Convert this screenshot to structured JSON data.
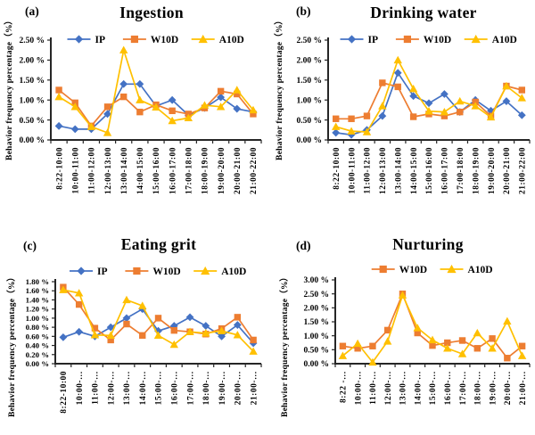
{
  "axis_color": "#262626",
  "text_color": "#000000",
  "series_colors": {
    "IP": "#4472C4",
    "W10D": "#ED7D31",
    "A10D": "#FFC000"
  },
  "chart_data": [
    {
      "type": "line",
      "panel_label": "(a)",
      "title": "Ingestion",
      "ylabel": "Behavior frequency percentage（%）",
      "xlabel": "",
      "ylim": [
        0,
        2.5
      ],
      "grid": false,
      "legend_position": "top",
      "ytick_labels": [
        "0.00 %",
        "0.50 %",
        "1.00 %",
        "1.50 %",
        "2.00 %",
        "2.50 %"
      ],
      "categories": [
        "8:22-10:00",
        "10:00-11:00",
        "11:00-12:00",
        "12:00-13:00",
        "13:00-14:00",
        "14:00-15:00",
        "15:00-16:00",
        "16:00-17:00",
        "17:00-18:00",
        "18:00-19:00",
        "19:00-20:00",
        "20:00-21:00",
        "21:00-22:00"
      ],
      "series": [
        {
          "name": "IP",
          "color": "#4472C4",
          "marker": "diamond",
          "values": [
            0.35,
            0.27,
            0.27,
            0.65,
            1.4,
            1.4,
            0.85,
            1.0,
            0.62,
            0.8,
            1.07,
            0.78,
            0.7
          ]
        },
        {
          "name": "W10D",
          "color": "#ED7D31",
          "marker": "square",
          "values": [
            1.25,
            0.93,
            0.35,
            0.83,
            1.08,
            0.7,
            0.88,
            0.73,
            0.65,
            0.8,
            1.22,
            1.15,
            0.65
          ]
        },
        {
          "name": "A10D",
          "color": "#FFC000",
          "marker": "triangle",
          "values": [
            1.08,
            0.83,
            0.33,
            0.18,
            2.25,
            1.0,
            0.82,
            0.48,
            0.55,
            0.87,
            0.83,
            1.25,
            0.75
          ]
        }
      ]
    },
    {
      "type": "line",
      "panel_label": "(b)",
      "title": "Drinking water",
      "ylabel": "Behavior frequency percentage（%）",
      "xlabel": "",
      "ylim": [
        0,
        2.5
      ],
      "grid": false,
      "legend_position": "top",
      "ytick_labels": [
        "0.00 %",
        "0.50 %",
        "1.00 %",
        "1.50 %",
        "2.00 %",
        "2.50 %"
      ],
      "categories": [
        "8:22-10:00",
        "10:00-11:00",
        "11:00-12:00",
        "12:00-13:00",
        "13:00-14:00",
        "14:00-15:00",
        "15:00-16:00",
        "16:00-17:00",
        "17:00-18:00",
        "18:00-19:00",
        "19:00-20:00",
        "20:00-21:00",
        "21:00-22:00"
      ],
      "series": [
        {
          "name": "IP",
          "color": "#4472C4",
          "marker": "diamond",
          "values": [
            0.18,
            0.13,
            0.25,
            0.6,
            1.68,
            1.1,
            0.92,
            1.15,
            0.7,
            1.0,
            0.73,
            0.97,
            0.62
          ]
        },
        {
          "name": "W10D",
          "color": "#ED7D31",
          "marker": "square",
          "values": [
            0.53,
            0.53,
            0.6,
            1.43,
            1.33,
            0.58,
            0.65,
            0.6,
            0.7,
            0.95,
            0.6,
            1.35,
            1.25
          ]
        },
        {
          "name": "A10D",
          "color": "#FFC000",
          "marker": "triangle",
          "values": [
            0.33,
            0.22,
            0.2,
            0.85,
            2.0,
            1.28,
            0.72,
            0.7,
            0.97,
            0.85,
            0.57,
            1.35,
            1.05
          ]
        }
      ]
    },
    {
      "type": "line",
      "panel_label": "(c)",
      "title": "Eating grit",
      "ylabel": "Behavior frequency percentage（%）",
      "xlabel": "",
      "ylim": [
        0,
        1.8
      ],
      "grid": false,
      "legend_position": "top",
      "ytick_labels": [
        "0.00 %",
        "0.20 %",
        "0.40 %",
        "0.60 %",
        "0.80 %",
        "1.00 %",
        "1.20 %",
        "1.40 %",
        "1.60 %",
        "1.80 %"
      ],
      "categories": [
        "8:22-10:00",
        "10:00-…",
        "11:00-…",
        "12:00-…",
        "13:00-…",
        "14:00-…",
        "15:00-…",
        "16:00-…",
        "17:00-…",
        "18:00-…",
        "19:00-…",
        "20:00-…",
        "21:00-…"
      ],
      "series": [
        {
          "name": "IP",
          "color": "#4472C4",
          "marker": "diamond",
          "values": [
            0.58,
            0.7,
            0.6,
            0.8,
            1.0,
            1.2,
            0.72,
            0.83,
            1.02,
            0.83,
            0.6,
            0.85,
            0.45
          ]
        },
        {
          "name": "W10D",
          "color": "#ED7D31",
          "marker": "square",
          "values": [
            1.68,
            1.3,
            0.78,
            0.52,
            0.87,
            0.62,
            1.0,
            0.73,
            0.7,
            0.65,
            0.77,
            1.02,
            0.52
          ]
        },
        {
          "name": "A10D",
          "color": "#FFC000",
          "marker": "triangle",
          "values": [
            1.62,
            1.55,
            0.63,
            0.62,
            1.4,
            1.27,
            0.62,
            0.42,
            0.7,
            0.67,
            0.72,
            0.63,
            0.27
          ]
        }
      ]
    },
    {
      "type": "line",
      "panel_label": "(d)",
      "title": "Nurturing",
      "ylabel": "Behavior frequency percentage（%）",
      "xlabel": "",
      "ylim": [
        0,
        3.0
      ],
      "grid": false,
      "legend_position": "top",
      "ytick_labels": [
        "0.00 %",
        "0.50 %",
        "1.00 %",
        "1.50 %",
        "2.00 %",
        "2.50 %",
        "3.00 %"
      ],
      "categories": [
        "8:22 -…",
        "10:00-…",
        "11:00-…",
        "12:00-…",
        "13:00-…",
        "14:00-…",
        "15:00-…",
        "16:00-…",
        "17:00-…",
        "18:00-…",
        "19:00-…",
        "20:00-…",
        "21:00-…"
      ],
      "series": [
        {
          "name": "W10D",
          "color": "#ED7D31",
          "marker": "square",
          "values": [
            0.63,
            0.55,
            0.63,
            1.2,
            2.5,
            1.1,
            0.65,
            0.75,
            0.83,
            0.55,
            0.9,
            0.2,
            0.63
          ]
        },
        {
          "name": "A10D",
          "color": "#FFC000",
          "marker": "triangle",
          "values": [
            0.28,
            0.72,
            0.05,
            0.8,
            2.45,
            1.28,
            0.85,
            0.55,
            0.35,
            1.1,
            0.55,
            1.52,
            0.28
          ]
        }
      ]
    }
  ]
}
